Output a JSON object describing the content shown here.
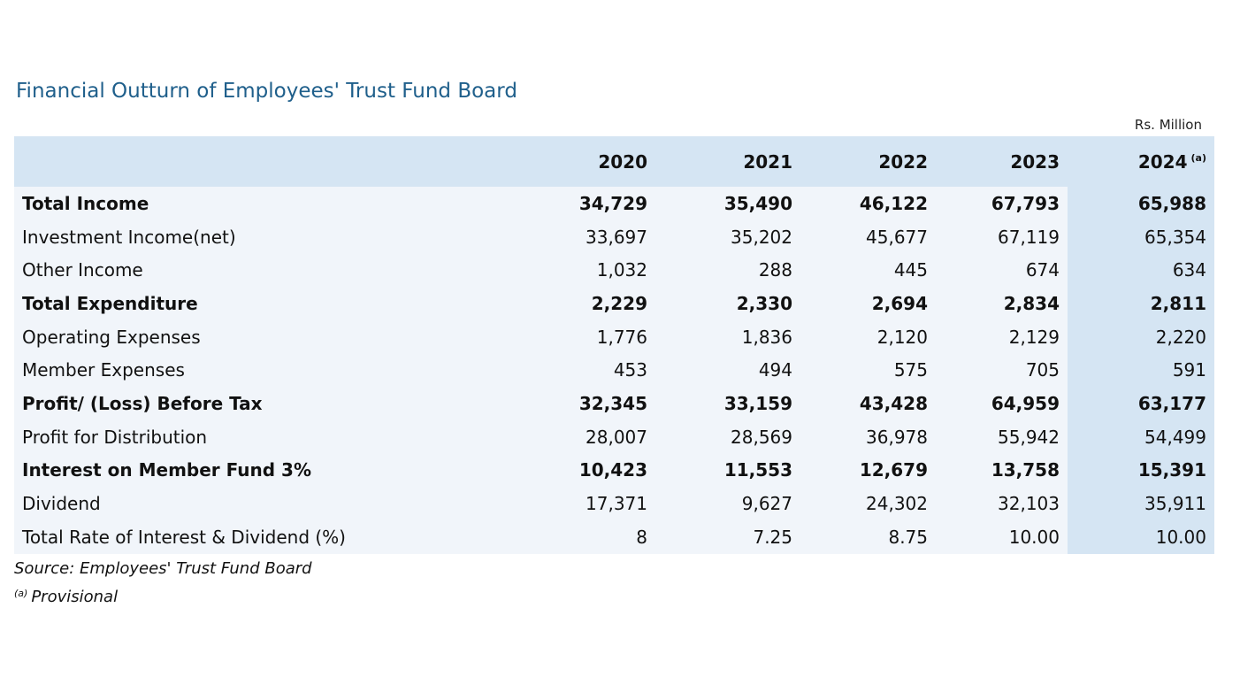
{
  "title": "Financial Outturn of Employees' Trust Fund Board",
  "units": "Rs. Million",
  "columns": [
    "2020",
    "2021",
    "2022",
    "2023",
    "2024"
  ],
  "last_column_note": "(a)",
  "rows": [
    {
      "label": "Total Income",
      "bold": true,
      "values": [
        "34,729",
        "35,490",
        "46,122",
        "67,793",
        "65,988"
      ]
    },
    {
      "label": "Investment Income(net)",
      "bold": false,
      "values": [
        "33,697",
        "35,202",
        "45,677",
        "67,119",
        "65,354"
      ]
    },
    {
      "label": "Other Income",
      "bold": false,
      "values": [
        "1,032",
        "288",
        "445",
        "674",
        "634"
      ]
    },
    {
      "label": "Total Expenditure",
      "bold": true,
      "values": [
        "2,229",
        "2,330",
        "2,694",
        "2,834",
        "2,811"
      ]
    },
    {
      "label": "Operating Expenses",
      "bold": false,
      "values": [
        "1,776",
        "1,836",
        "2,120",
        "2,129",
        "2,220"
      ]
    },
    {
      "label": "Member Expenses",
      "bold": false,
      "values": [
        "453",
        "494",
        "575",
        "705",
        "591"
      ]
    },
    {
      "label": "Profit/ (Loss) Before Tax",
      "bold": true,
      "values": [
        "32,345",
        "33,159",
        "43,428",
        "64,959",
        "63,177"
      ]
    },
    {
      "label": "Profit for Distribution",
      "bold": false,
      "values": [
        "28,007",
        "28,569",
        "36,978",
        "55,942",
        "54,499"
      ]
    },
    {
      "label": "Interest on Member Fund 3%",
      "bold": true,
      "values": [
        "10,423",
        "11,553",
        "12,679",
        "13,758",
        "15,391"
      ]
    },
    {
      "label": "Dividend",
      "bold": false,
      "values": [
        "17,371",
        "9,627",
        "24,302",
        "32,103",
        "35,911"
      ]
    },
    {
      "label": "Total Rate of Interest & Dividend (%)",
      "bold": false,
      "values": [
        "8",
        "7.25",
        "8.75",
        "10.00",
        "10.00"
      ]
    }
  ],
  "source": "Source: Employees' Trust Fund Board",
  "footnote": {
    "marker": "(a)",
    "text": "Provisional"
  }
}
